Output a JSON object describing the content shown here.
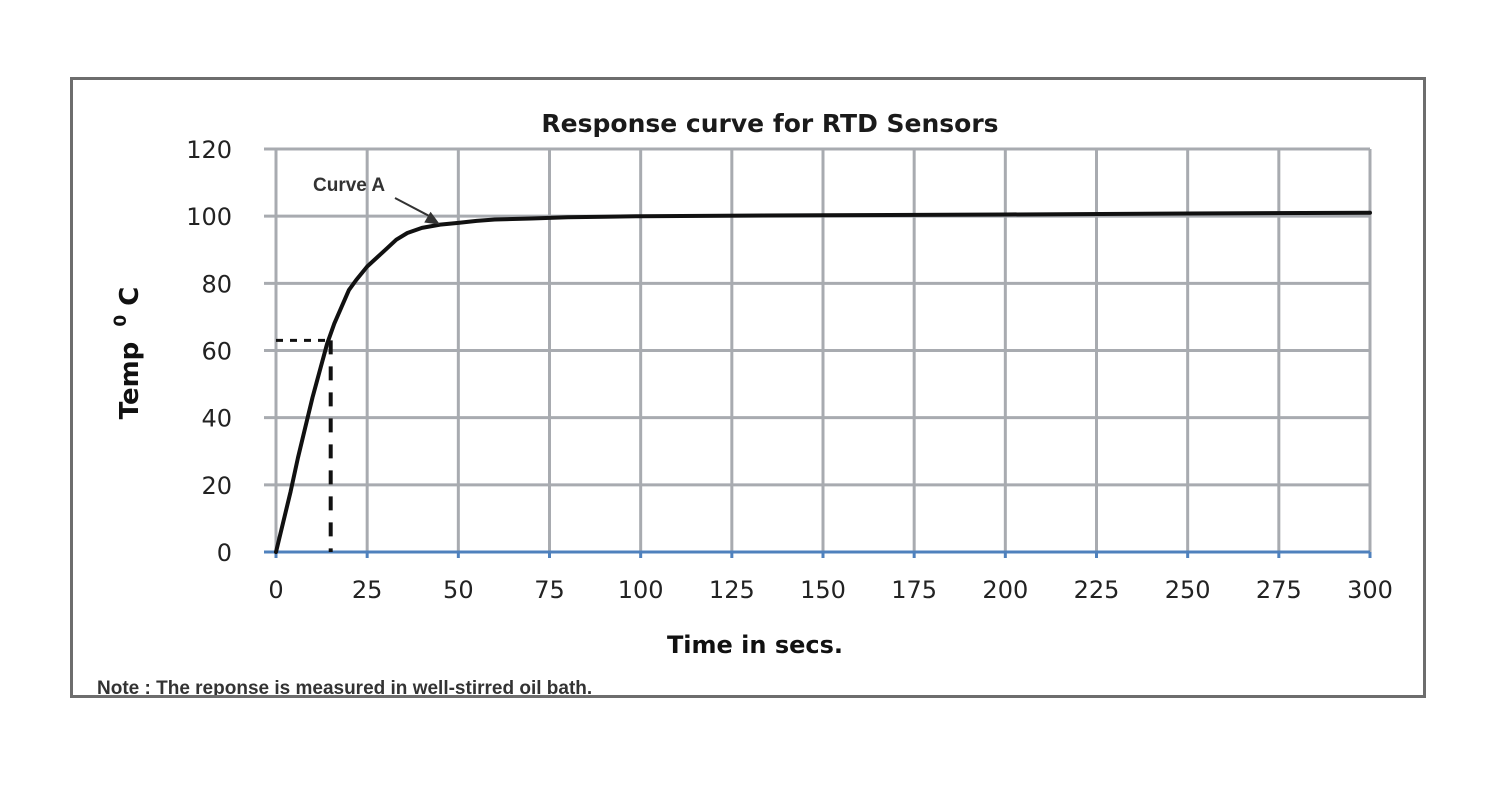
{
  "chart_data": {
    "type": "line",
    "title": "Response curve for RTD Sensors",
    "xlabel": "Time in secs.",
    "ylabel": "Temp",
    "ylabel_sup": "0",
    "ylabel_unit": "C",
    "xlim": [
      0,
      300
    ],
    "ylim": [
      0,
      120
    ],
    "x_ticks": [
      "0",
      "25",
      "50",
      "75",
      "100",
      "125",
      "150",
      "175",
      "200",
      "225",
      "250",
      "275",
      "300"
    ],
    "y_ticks": [
      "0",
      "20",
      "40",
      "60",
      "80",
      "100",
      "120"
    ],
    "grid": true,
    "series": [
      {
        "name": "Curve A",
        "x": [
          0,
          2,
          4,
          6,
          8,
          10,
          12,
          14,
          16,
          18,
          20,
          22,
          25,
          28,
          30,
          33,
          36,
          40,
          45,
          50,
          55,
          60,
          70,
          80,
          90,
          100,
          150,
          200,
          250,
          300
        ],
        "y": [
          0,
          9,
          18,
          28,
          37,
          46,
          54,
          62,
          68,
          73,
          78,
          81,
          85,
          88,
          90,
          93,
          95,
          96.5,
          97.5,
          98,
          98.6,
          99,
          99.3,
          99.7,
          99.8,
          100,
          100.3,
          100.5,
          100.8,
          101
        ]
      }
    ],
    "annotations": [
      {
        "text": "Curve A",
        "target_x": 45,
        "target_y": 97.5
      },
      {
        "text": "",
        "type": "dashed-guide",
        "x": 15,
        "y": 63
      }
    ],
    "colors": {
      "curve": "#111111",
      "grid": "#a8abb0",
      "x_axis": "#4f81bd"
    }
  },
  "note": "Note : The reponse is measured in well-stirred oil bath."
}
